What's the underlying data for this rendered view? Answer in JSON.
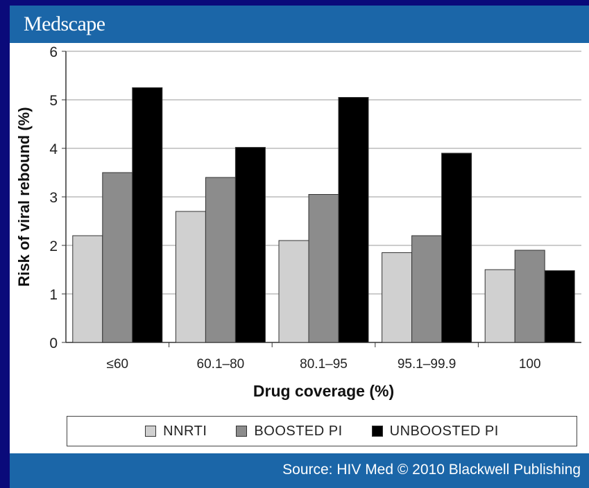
{
  "header": {
    "brand": "Medscape"
  },
  "footer": {
    "source": "Source: HIV Med © 2010 Blackwell Publishing"
  },
  "colors": {
    "header_bg": "#1b66a8",
    "frame_bg": "#0a0a7a",
    "nnrti": "#d0d0d0",
    "boosted": "#8c8c8c",
    "unboosted": "#000000"
  },
  "chart_data": {
    "type": "bar",
    "title": "",
    "xlabel": "Drug coverage (%)",
    "ylabel": "Risk of viral rebound (%)",
    "ylim": [
      0,
      6
    ],
    "yticks": [
      "0",
      "1",
      "2",
      "3",
      "4",
      "5",
      "6"
    ],
    "categories": [
      "≤60",
      "60.1–80",
      "80.1–95",
      "95.1–99.9",
      "100"
    ],
    "series": [
      {
        "name": "NNRTI",
        "color": "#d0d0d0",
        "values": [
          2.2,
          2.7,
          2.1,
          1.85,
          1.5
        ]
      },
      {
        "name": "BOOSTED PI",
        "color": "#8c8c8c",
        "values": [
          3.5,
          3.4,
          3.05,
          2.2,
          1.9
        ]
      },
      {
        "name": "UNBOOSTED PI",
        "color": "#000000",
        "values": [
          5.25,
          4.02,
          5.05,
          3.9,
          1.48
        ]
      }
    ],
    "grid": true,
    "legend": "bottom"
  }
}
